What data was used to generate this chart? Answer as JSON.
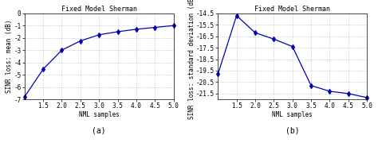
{
  "title": "Fixed Model Sherman",
  "plot_a": {
    "x": [
      1.0,
      1.5,
      2.0,
      2.5,
      3.0,
      3.5,
      4.0,
      4.5,
      5.0
    ],
    "y": [
      -6.8,
      -4.55,
      -3.0,
      -2.25,
      -1.75,
      -1.5,
      -1.3,
      -1.15,
      -1.0
    ],
    "xlabel": "NML samples",
    "ylabel": "SINR loss: mean (dB)",
    "xlim": [
      1.0,
      5.0
    ],
    "ylim": [
      -7.0,
      0.0
    ],
    "xticks": [
      1.5,
      2.0,
      2.5,
      3.0,
      3.5,
      4.0,
      4.5,
      5.0
    ],
    "yticks": [
      0,
      -1,
      -2,
      -3,
      -4,
      -5,
      -6,
      -7
    ],
    "ytick_labels": [
      "0",
      "-1",
      "-2",
      "-3",
      "-4",
      "-5",
      "-6",
      "-7"
    ],
    "label": "(a)"
  },
  "plot_b": {
    "x": [
      1.0,
      1.5,
      2.0,
      2.5,
      3.0,
      3.5,
      4.0,
      4.5,
      5.0
    ],
    "y": [
      -19.8,
      -14.7,
      -16.2,
      -16.75,
      -17.4,
      -20.8,
      -21.3,
      -21.5,
      -21.85
    ],
    "xlabel": "NML samples",
    "ylabel": "SINR loss: standard deviation (dB)",
    "xlim": [
      1.0,
      5.0
    ],
    "ylim": [
      -22.0,
      -14.5
    ],
    "xticks": [
      1.5,
      2.0,
      2.5,
      3.0,
      3.5,
      4.0,
      4.5,
      5.0
    ],
    "yticks": [
      -14.5,
      -15.5,
      -16.5,
      -17.5,
      -18.5,
      -19.5,
      -20.5,
      -21.5
    ],
    "ytick_labels": [
      "-14.5",
      "-15.5",
      "-16.5",
      "-17.5",
      "-18.5",
      "-19.5",
      "-20.5",
      "-21.5"
    ],
    "label": "(b)"
  },
  "line_color": "#0000bb",
  "marker": "d",
  "markersize": 3.0,
  "linewidth": 0.9,
  "grid_color": "#b0b0b0",
  "background": "#ffffff",
  "title_fontsize": 6,
  "label_fontsize": 5.5,
  "tick_fontsize": 5.5,
  "subplot_label_fontsize": 7
}
